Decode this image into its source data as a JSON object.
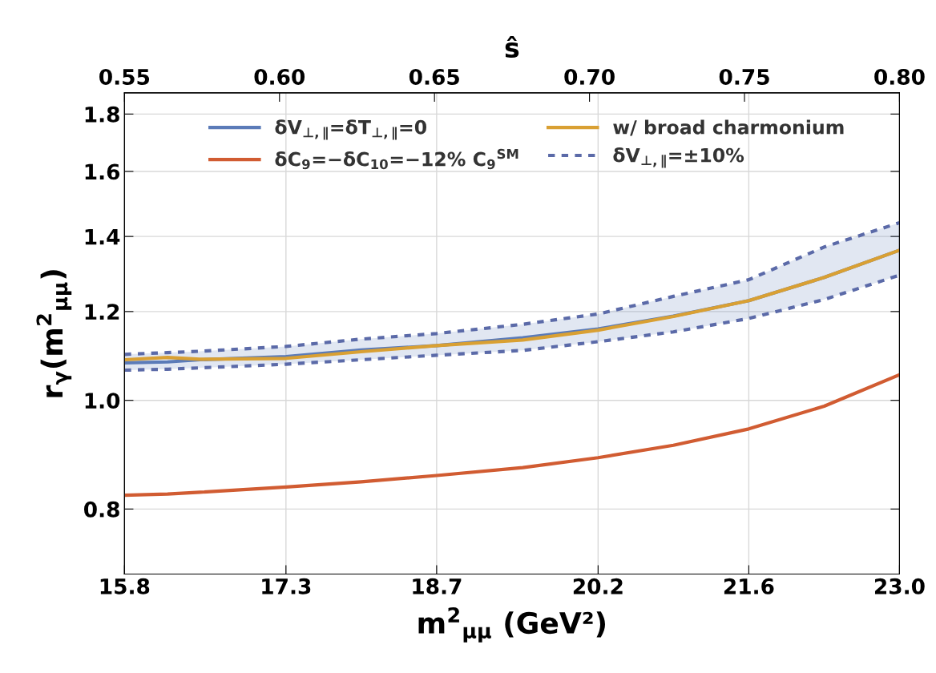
{
  "chart_data": {
    "type": "line",
    "xlabel": "m$^{2}$$_{μμ}$ (GeV²)",
    "ylabel": "r$_{γ}$(m$^{2}$$_{μμ}$)",
    "x2label": "ŝ",
    "x": [
      15.8,
      16.2,
      16.5,
      17.3,
      18.0,
      18.7,
      19.5,
      20.2,
      20.9,
      21.6,
      22.3,
      23.0
    ],
    "series": [
      {
        "name": "δV$_{⊥,∥}$=δT$_{⊥,∥}$=0",
        "color": "#5b7bb8",
        "values": [
          1.08,
          1.082,
          1.087,
          1.094,
          1.109,
          1.119,
          1.137,
          1.158,
          1.189,
          1.227,
          1.287,
          1.361
        ],
        "lower": [
          1.064,
          1.066,
          1.069,
          1.077,
          1.087,
          1.097,
          1.108,
          1.128,
          1.151,
          1.183,
          1.23,
          1.293
        ],
        "upper": [
          1.099,
          1.103,
          1.106,
          1.117,
          1.134,
          1.147,
          1.169,
          1.194,
          1.238,
          1.281,
          1.37,
          1.44
        ]
      },
      {
        "name": "δC$_{9}$=−δC$_{10}$=−12% C$_{9}$$^{SM}$",
        "color": "#d15c32",
        "values": [
          0.823,
          0.825,
          0.828,
          0.837,
          0.846,
          0.857,
          0.871,
          0.889,
          0.912,
          0.943,
          0.988,
          1.054
        ]
      },
      {
        "name": "w/ broad charmonium",
        "color": "#d9a033",
        "values": [
          1.087,
          1.092,
          1.088,
          1.09,
          1.105,
          1.119,
          1.132,
          1.155,
          1.188,
          1.227,
          1.287,
          1.361
        ]
      },
      {
        "name": "δV$_{⊥,∥}$=±10%",
        "color": "#5b6aa8",
        "line_style": "dotted",
        "values": [
          1.099,
          1.103,
          1.106,
          1.117,
          1.134,
          1.147,
          1.169,
          1.194,
          1.238,
          1.281,
          1.37,
          1.44
        ]
      },
      {
        "color": "#5b6aa8",
        "line_style": "dotted",
        "values": [
          1.064,
          1.066,
          1.069,
          1.077,
          1.087,
          1.097,
          1.108,
          1.128,
          1.151,
          1.183,
          1.23,
          1.293
        ]
      }
    ],
    "log": "y",
    "xlim": [
      15.8,
      23.0
    ],
    "xticks": [
      15.8,
      17.3,
      18.7,
      20.2,
      21.6,
      {
        "value": 23.0,
        "label": "23.0"
      }
    ],
    "ylim": [
      0.7,
      1.88
    ],
    "yticks": [
      0.8,
      {
        "value": 1.0,
        "label": "1.0"
      },
      1.2,
      1.4,
      1.6,
      1.8
    ],
    "x2lim": [
      0.55,
      0.8
    ],
    "x2ticks": [
      0.55,
      {
        "value": 0.6,
        "label": "0.60"
      },
      0.65,
      {
        "value": 0.7,
        "label": "0.70"
      },
      0.75,
      {
        "value": 0.8,
        "label": "0.80"
      }
    ],
    "grid": true,
    "legend": "top"
  }
}
